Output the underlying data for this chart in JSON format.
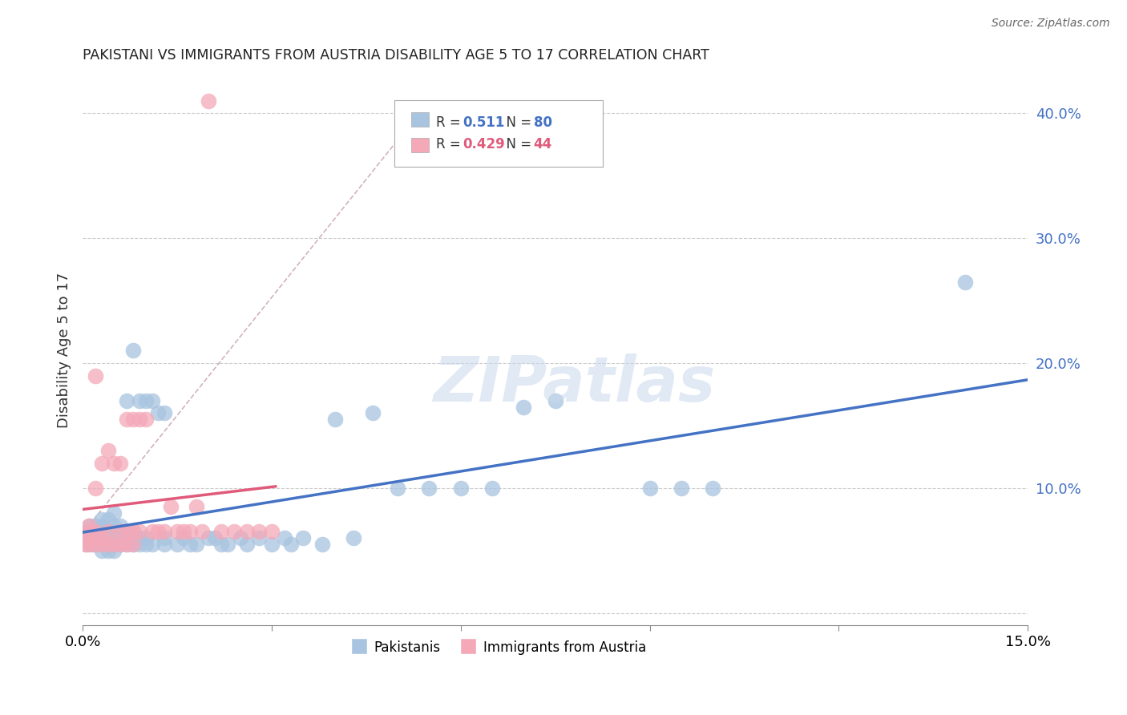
{
  "title": "PAKISTANI VS IMMIGRANTS FROM AUSTRIA DISABILITY AGE 5 TO 17 CORRELATION CHART",
  "source": "Source: ZipAtlas.com",
  "ylabel": "Disability Age 5 to 17",
  "xlim": [
    0.0,
    0.15
  ],
  "ylim": [
    -0.01,
    0.43
  ],
  "xticks": [
    0.0,
    0.03,
    0.06,
    0.09,
    0.12,
    0.15
  ],
  "xticklabels": [
    "0.0%",
    "",
    "",
    "",
    "",
    "15.0%"
  ],
  "yticks": [
    0.0,
    0.1,
    0.2,
    0.3,
    0.4
  ],
  "yticklabels": [
    "",
    "10.0%",
    "20.0%",
    "30.0%",
    "40.0%"
  ],
  "pakistani_color": "#a8c4e0",
  "austria_color": "#f4a8b8",
  "trendline_pakistani_color": "#4472c4",
  "trendline_austria_color": "#e05a7a",
  "dashed_line_color": "#c8a0a8",
  "watermark_color": "#c8d8ec",
  "legend_r_pakistani": "0.511",
  "legend_n_pakistani": "80",
  "legend_r_austria": "0.429",
  "legend_n_austria": "44",
  "pakistani_x": [
    0.0005,
    0.001,
    0.001,
    0.001,
    0.0015,
    0.0015,
    0.002,
    0.002,
    0.002,
    0.002,
    0.003,
    0.003,
    0.003,
    0.003,
    0.003,
    0.003,
    0.004,
    0.004,
    0.004,
    0.004,
    0.004,
    0.005,
    0.005,
    0.005,
    0.005,
    0.005,
    0.005,
    0.006,
    0.006,
    0.006,
    0.006,
    0.007,
    0.007,
    0.007,
    0.007,
    0.008,
    0.008,
    0.008,
    0.008,
    0.009,
    0.009,
    0.009,
    0.01,
    0.01,
    0.01,
    0.011,
    0.011,
    0.012,
    0.013,
    0.013,
    0.013,
    0.015,
    0.016,
    0.017,
    0.018,
    0.02,
    0.021,
    0.022,
    0.023,
    0.025,
    0.026,
    0.028,
    0.03,
    0.032,
    0.033,
    0.035,
    0.038,
    0.04,
    0.043,
    0.046,
    0.05,
    0.055,
    0.06,
    0.065,
    0.07,
    0.075,
    0.09,
    0.095,
    0.1,
    0.14
  ],
  "pakistani_y": [
    0.055,
    0.06,
    0.065,
    0.07,
    0.055,
    0.06,
    0.055,
    0.06,
    0.065,
    0.07,
    0.05,
    0.055,
    0.06,
    0.065,
    0.07,
    0.075,
    0.05,
    0.055,
    0.06,
    0.065,
    0.075,
    0.05,
    0.055,
    0.06,
    0.065,
    0.07,
    0.08,
    0.055,
    0.06,
    0.065,
    0.07,
    0.055,
    0.06,
    0.065,
    0.17,
    0.055,
    0.06,
    0.065,
    0.21,
    0.055,
    0.06,
    0.17,
    0.055,
    0.06,
    0.17,
    0.055,
    0.17,
    0.16,
    0.055,
    0.06,
    0.16,
    0.055,
    0.06,
    0.055,
    0.055,
    0.06,
    0.06,
    0.055,
    0.055,
    0.06,
    0.055,
    0.06,
    0.055,
    0.06,
    0.055,
    0.06,
    0.055,
    0.155,
    0.06,
    0.16,
    0.1,
    0.1,
    0.1,
    0.1,
    0.165,
    0.17,
    0.1,
    0.1,
    0.1,
    0.265
  ],
  "austria_x": [
    0.0005,
    0.001,
    0.001,
    0.001,
    0.001,
    0.002,
    0.002,
    0.002,
    0.002,
    0.003,
    0.003,
    0.003,
    0.004,
    0.004,
    0.004,
    0.005,
    0.005,
    0.006,
    0.006,
    0.006,
    0.007,
    0.007,
    0.007,
    0.008,
    0.008,
    0.008,
    0.009,
    0.009,
    0.01,
    0.011,
    0.012,
    0.013,
    0.014,
    0.015,
    0.016,
    0.017,
    0.018,
    0.019,
    0.02,
    0.022,
    0.024,
    0.026,
    0.028,
    0.03
  ],
  "austria_y": [
    0.055,
    0.055,
    0.06,
    0.065,
    0.07,
    0.055,
    0.065,
    0.1,
    0.19,
    0.055,
    0.06,
    0.12,
    0.055,
    0.065,
    0.13,
    0.055,
    0.12,
    0.055,
    0.065,
    0.12,
    0.055,
    0.065,
    0.155,
    0.055,
    0.065,
    0.155,
    0.065,
    0.155,
    0.155,
    0.065,
    0.065,
    0.065,
    0.085,
    0.065,
    0.065,
    0.065,
    0.085,
    0.065,
    0.41,
    0.065,
    0.065,
    0.065,
    0.065,
    0.065
  ]
}
